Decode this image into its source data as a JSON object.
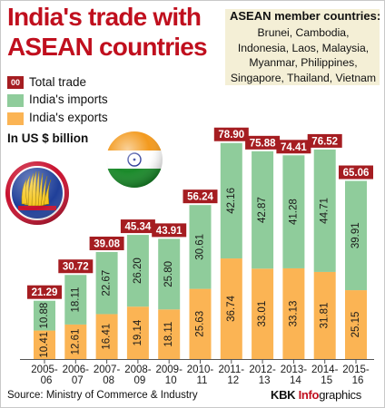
{
  "title": "India's trade with ASEAN countries",
  "members": {
    "title": "ASEAN member countries:",
    "lines": [
      "Brunei, Cambodia,",
      "Indonesia, Laos, Malaysia,",
      "Myanmar, Philippines,",
      "Singapore, Thailand, Vietnam"
    ]
  },
  "legend": {
    "total_swatch": "00",
    "total_label": "Total trade",
    "imports_label": "India's imports",
    "exports_label": "India's exports"
  },
  "unit_label": "In US $ billion",
  "source": "Source: Ministry of Commerce & Industry",
  "credit": {
    "kbk": "KBK",
    "info": "Info",
    "graphics": "graphics"
  },
  "colors": {
    "title": "#c00f1e",
    "total": "#a51d21",
    "imports": "#8fcc9b",
    "exports": "#fbb454",
    "member_box": "#f4efd6"
  },
  "icons": [
    "asean-logo-icon",
    "india-flag-icon"
  ],
  "chart_data": {
    "type": "bar",
    "stacked": true,
    "categories": [
      "2005-06",
      "2006-07",
      "2007-08",
      "2008-09",
      "2009-10",
      "2010-11",
      "2011-12",
      "2012-13",
      "2013-14",
      "2014-15",
      "2015-16"
    ],
    "series": [
      {
        "name": "India's exports",
        "values": [
          10.41,
          12.61,
          16.41,
          19.14,
          18.11,
          25.63,
          36.74,
          33.01,
          33.13,
          31.81,
          25.15
        ]
      },
      {
        "name": "India's imports",
        "values": [
          10.88,
          18.11,
          22.67,
          26.2,
          25.8,
          30.61,
          42.16,
          42.87,
          41.28,
          44.71,
          39.91
        ]
      }
    ],
    "totals": [
      "21.29",
      "30.72",
      "39.08",
      "45.34",
      "43.91",
      "56.24",
      "78.90",
      "75.88",
      "74.41",
      "76.52",
      "65.06"
    ],
    "export_labels": [
      "10.41",
      "12.61",
      "16.41",
      "19.14",
      "18.11",
      "25.63",
      "36.74",
      "33.01",
      "33.13",
      "31.81",
      "25.15"
    ],
    "import_labels": [
      "10.88",
      "18.11",
      "22.67",
      "26.20",
      "25.80",
      "30.61",
      "42.16",
      "42.87",
      "41.28",
      "44.71",
      "39.91"
    ],
    "ylabel": "In US $ billion"
  }
}
